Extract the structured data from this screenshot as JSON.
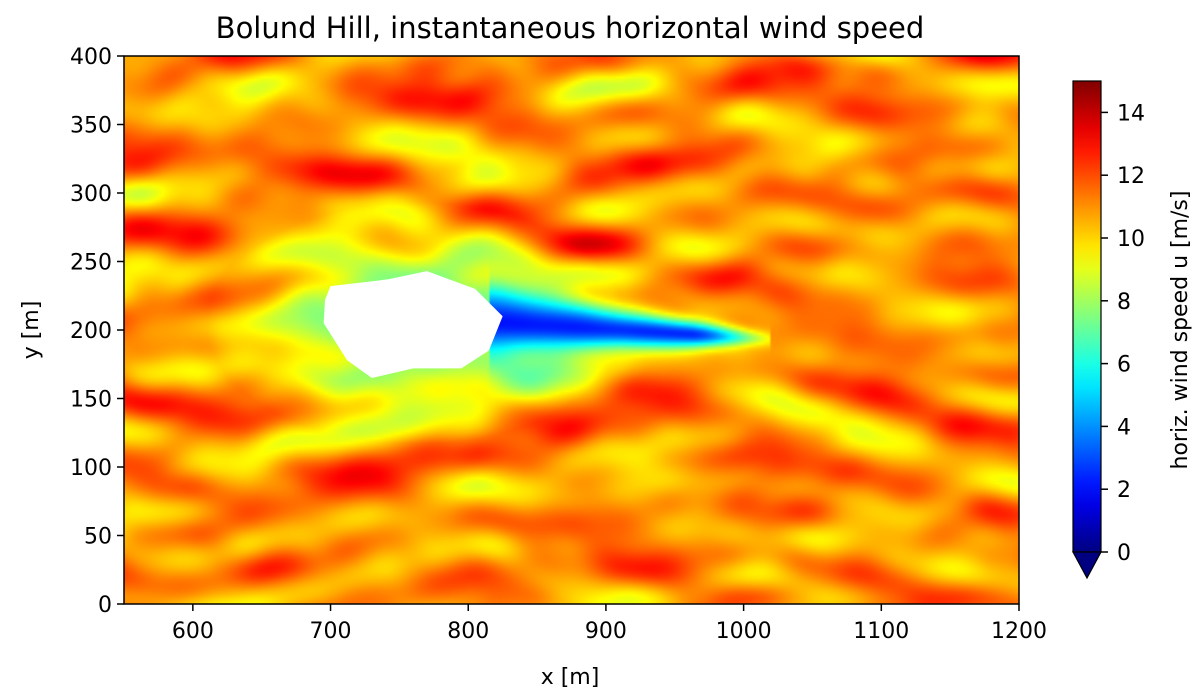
{
  "chart_data": {
    "type": "heatmap",
    "title": "Bolund Hill, instantaneous horizontal wind speed",
    "xlabel": "x [m]",
    "ylabel": "y [m]",
    "xlim": [
      550,
      1200
    ],
    "ylim": [
      0,
      400
    ],
    "x_ticks": [
      600,
      700,
      800,
      900,
      1000,
      1100,
      1200
    ],
    "y_ticks": [
      0,
      50,
      100,
      150,
      200,
      250,
      300,
      350,
      400
    ],
    "colormap": "jet",
    "colorbar": {
      "label": "horiz. wind speed u [m/s]",
      "range": [
        0,
        15
      ],
      "ticks": [
        0,
        2,
        4,
        6,
        8,
        10,
        12,
        14
      ],
      "extend": "min"
    },
    "field": {
      "background_mean": 11,
      "fluctuation": 3,
      "streak_orientation": "along-x"
    },
    "masked_region": {
      "description": "hill (no data, white)",
      "outline": [
        [
          700,
          232
        ],
        [
          742,
          237
        ],
        [
          770,
          243
        ],
        [
          805,
          230
        ],
        [
          825,
          210
        ],
        [
          815,
          185
        ],
        [
          795,
          172
        ],
        [
          760,
          172
        ],
        [
          730,
          165
        ],
        [
          712,
          178
        ],
        [
          695,
          205
        ],
        [
          696,
          222
        ]
      ]
    },
    "wake": {
      "x_start": 825,
      "x_end": 960,
      "y_center": 205,
      "min_speed": 1
    },
    "grid": false,
    "legend": "none"
  }
}
